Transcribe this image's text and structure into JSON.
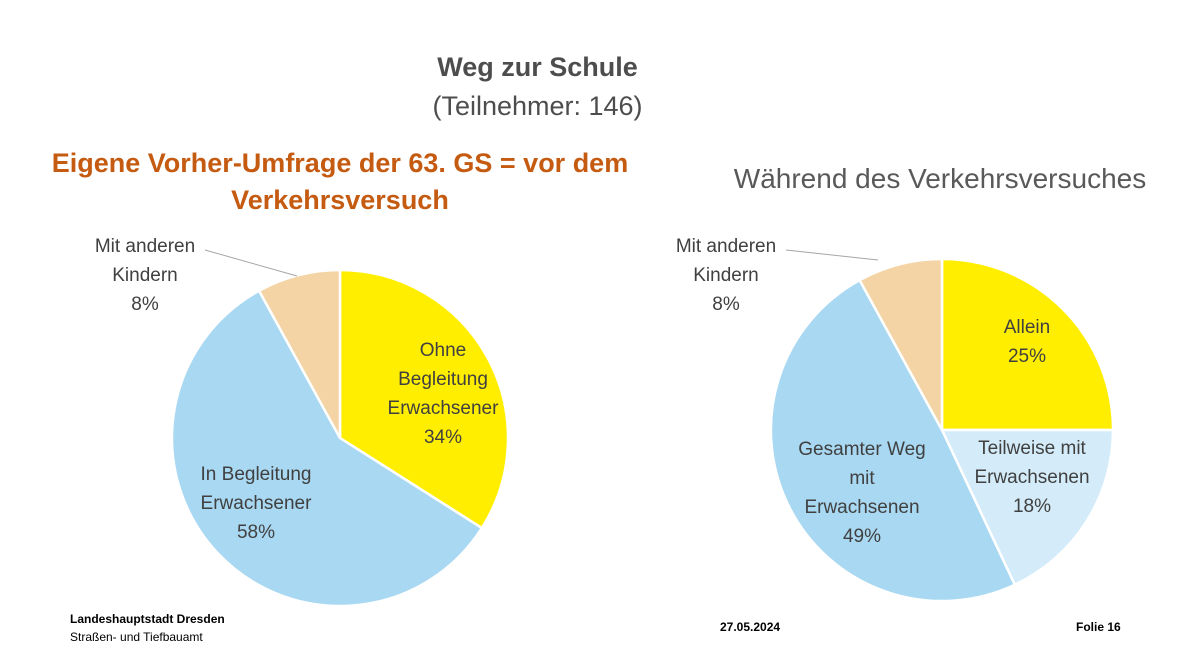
{
  "slide": {
    "title": "Weg zur Schule",
    "subtitle": "(Teilnehmer: 146)",
    "footer": {
      "org": "Landeshauptstadt Dresden",
      "dept": "Straßen- und Tiefbauamt",
      "date": "27.05.2024",
      "slide_no": "Folie 16"
    }
  },
  "chart_data": [
    {
      "type": "pie",
      "title": "Eigene Vorher-Umfrage der 63. GS = vor dem Verkehrsversuch",
      "slices": [
        {
          "label": "Ohne Begleitung Erwachsener",
          "value": 34,
          "display": "34%",
          "color": "#ffee00"
        },
        {
          "label": "In Begleitung Erwachsener",
          "value": 58,
          "display": "58%",
          "color": "#a9d8f2"
        },
        {
          "label": "Mit anderen Kindern",
          "value": 8,
          "display": "8%",
          "color": "#f4d4a4"
        }
      ]
    },
    {
      "type": "pie",
      "title": "Während des Verkehrsversuches",
      "slices": [
        {
          "label": "Allein",
          "value": 25,
          "display": "25%",
          "color": "#ffee00"
        },
        {
          "label": "Teilweise mit Erwachsenen",
          "value": 18,
          "display": "18%",
          "color": "#d4ecf9"
        },
        {
          "label": "Gesamter Weg mit Erwachsenen",
          "value": 49,
          "display": "49%",
          "color": "#a9d8f2"
        },
        {
          "label": "Mit anderen Kindern",
          "value": 8,
          "display": "8%",
          "color": "#f4d4a4"
        }
      ]
    }
  ]
}
